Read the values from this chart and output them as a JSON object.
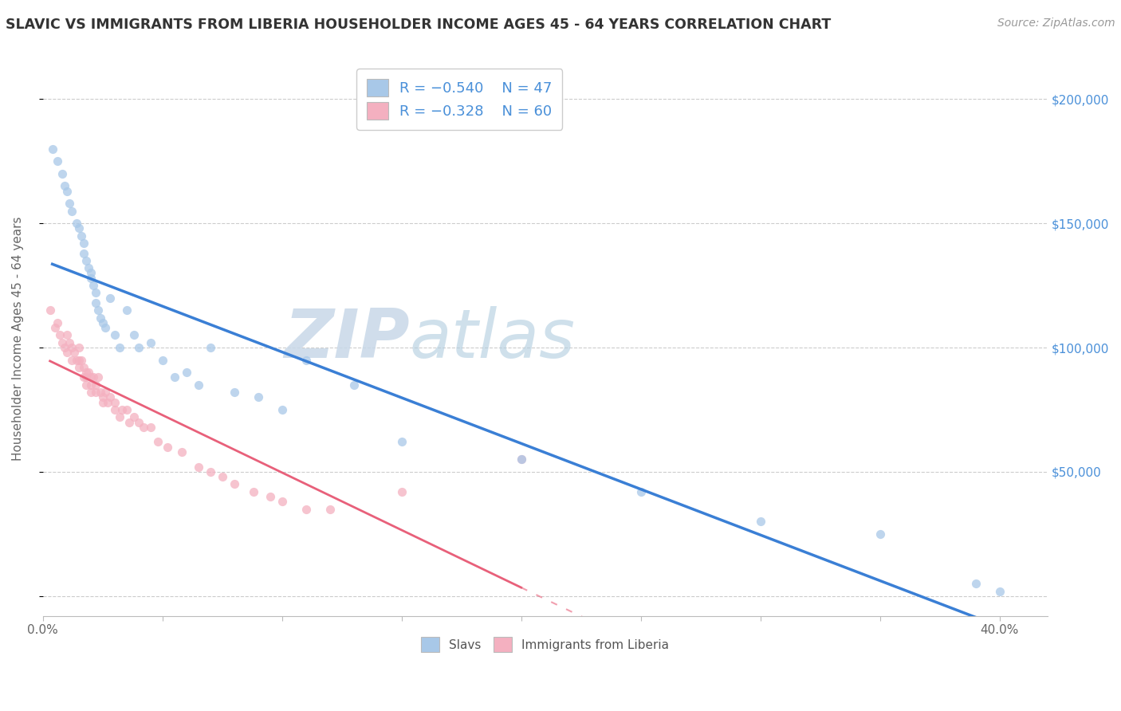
{
  "title": "SLAVIC VS IMMIGRANTS FROM LIBERIA HOUSEHOLDER INCOME AGES 45 - 64 YEARS CORRELATION CHART",
  "source": "Source: ZipAtlas.com",
  "ylabel": "Householder Income Ages 45 - 64 years",
  "xlim": [
    0.0,
    0.42
  ],
  "ylim": [
    -8000,
    215000
  ],
  "xtick_positions": [
    0.0,
    0.05,
    0.1,
    0.15,
    0.2,
    0.25,
    0.3,
    0.35,
    0.4
  ],
  "ytick_positions": [
    0,
    50000,
    100000,
    150000,
    200000
  ],
  "right_yticklabels": [
    "",
    "$50,000",
    "$100,000",
    "$150,000",
    "$200,000"
  ],
  "slavs_color": "#a8c8e8",
  "liberia_color": "#f4b0c0",
  "slavs_line_color": "#3a7fd5",
  "liberia_line_color": "#e8607a",
  "watermark_zip_color": "#d0dce8",
  "watermark_atlas_color": "#b8d0e8",
  "background_color": "#ffffff",
  "slavs_x": [
    0.004,
    0.006,
    0.008,
    0.009,
    0.01,
    0.011,
    0.012,
    0.014,
    0.015,
    0.016,
    0.017,
    0.017,
    0.018,
    0.019,
    0.02,
    0.02,
    0.021,
    0.022,
    0.022,
    0.023,
    0.024,
    0.025,
    0.026,
    0.028,
    0.03,
    0.032,
    0.035,
    0.038,
    0.04,
    0.045,
    0.05,
    0.055,
    0.06,
    0.065,
    0.07,
    0.08,
    0.09,
    0.1,
    0.11,
    0.13,
    0.15,
    0.2,
    0.25,
    0.3,
    0.35,
    0.39,
    0.4
  ],
  "slavs_y": [
    180000,
    175000,
    170000,
    165000,
    163000,
    158000,
    155000,
    150000,
    148000,
    145000,
    142000,
    138000,
    135000,
    132000,
    130000,
    128000,
    125000,
    122000,
    118000,
    115000,
    112000,
    110000,
    108000,
    120000,
    105000,
    100000,
    115000,
    105000,
    100000,
    102000,
    95000,
    88000,
    90000,
    85000,
    100000,
    82000,
    80000,
    75000,
    95000,
    85000,
    62000,
    55000,
    42000,
    30000,
    25000,
    5000,
    2000
  ],
  "liberia_x": [
    0.003,
    0.005,
    0.006,
    0.007,
    0.008,
    0.009,
    0.01,
    0.01,
    0.011,
    0.012,
    0.012,
    0.013,
    0.014,
    0.015,
    0.015,
    0.015,
    0.016,
    0.017,
    0.017,
    0.018,
    0.018,
    0.018,
    0.019,
    0.02,
    0.02,
    0.02,
    0.021,
    0.022,
    0.022,
    0.023,
    0.024,
    0.025,
    0.025,
    0.026,
    0.027,
    0.028,
    0.03,
    0.03,
    0.032,
    0.033,
    0.035,
    0.036,
    0.038,
    0.04,
    0.042,
    0.045,
    0.048,
    0.052,
    0.058,
    0.065,
    0.07,
    0.075,
    0.08,
    0.088,
    0.095,
    0.1,
    0.11,
    0.12,
    0.15,
    0.2
  ],
  "liberia_y": [
    115000,
    108000,
    110000,
    105000,
    102000,
    100000,
    105000,
    98000,
    102000,
    100000,
    95000,
    98000,
    95000,
    100000,
    95000,
    92000,
    95000,
    92000,
    88000,
    90000,
    88000,
    85000,
    90000,
    88000,
    85000,
    82000,
    88000,
    85000,
    82000,
    88000,
    82000,
    80000,
    78000,
    82000,
    78000,
    80000,
    78000,
    75000,
    72000,
    75000,
    75000,
    70000,
    72000,
    70000,
    68000,
    68000,
    62000,
    60000,
    58000,
    52000,
    50000,
    48000,
    45000,
    42000,
    40000,
    38000,
    35000,
    35000,
    42000,
    55000
  ]
}
